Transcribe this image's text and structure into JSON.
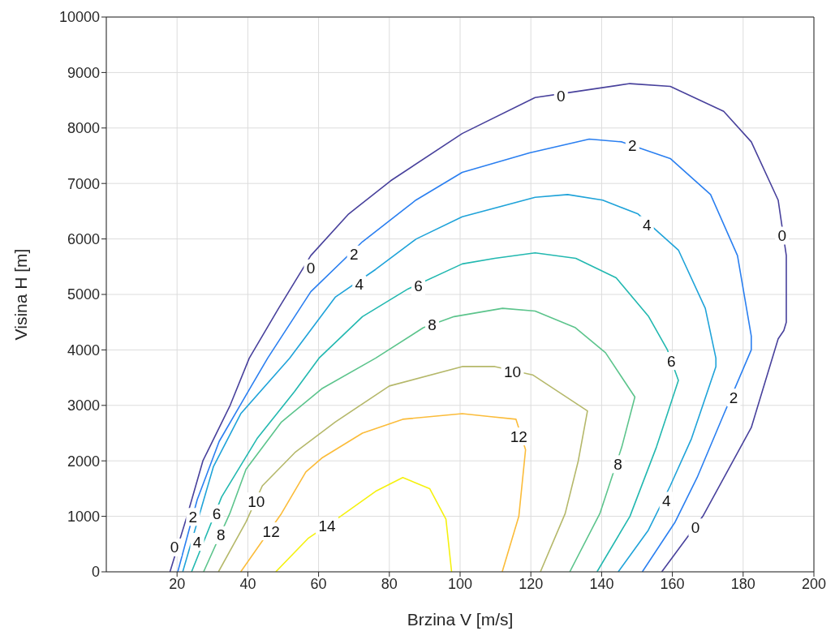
{
  "chart_data": {
    "type": "line",
    "xlabel": "Brzina V [m/s]",
    "ylabel": "Visina H [m]",
    "xlim": [
      0,
      200
    ],
    "xticks": [
      20,
      40,
      60,
      80,
      100,
      120,
      140,
      160,
      180,
      200
    ],
    "ylim": [
      0,
      10000
    ],
    "yticks": [
      0,
      1000,
      2000,
      3000,
      4000,
      5000,
      6000,
      7000,
      8000,
      9000,
      10000
    ],
    "grid": true,
    "marker": "none",
    "line_style": "solid",
    "series": [
      {
        "color": "#48419c",
        "x": [
          18,
          22.8,
          27.3,
          35,
          40.4,
          48.7,
          57.8,
          68.5,
          80.4,
          100.6,
          121.2,
          132,
          148,
          159.4,
          174.5,
          182.3,
          189.9,
          192.2,
          192.2,
          191.5,
          189.9,
          182.3,
          168.6,
          157
        ],
        "values": [
          0,
          1000,
          2000,
          3000,
          3850,
          4750,
          5700,
          6450,
          7050,
          7900,
          8550,
          8650,
          8800,
          8750,
          8300,
          7750,
          6700,
          5700,
          4500,
          4350,
          4200,
          2600,
          1000,
          0
        ]
      },
      {
        "color": "#2a7ff0",
        "x": [
          20.2,
          25.7,
          31.9,
          41,
          45.6,
          57.8,
          72.4,
          87.5,
          100.6,
          119.6,
          136.5,
          145.7,
          159.4,
          170.8,
          178.4,
          182.3,
          182.3,
          174.6,
          167,
          160.8,
          151.5
        ],
        "values": [
          0,
          1300,
          2350,
          3350,
          3850,
          5050,
          5950,
          6700,
          7200,
          7550,
          7800,
          7750,
          7450,
          6800,
          5700,
          4250,
          4000,
          2850,
          1700,
          900,
          0
        ]
      },
      {
        "color": "#1fa3d9",
        "x": [
          21.6,
          30.3,
          38,
          51.8,
          64.7,
          76.1,
          87.6,
          100.6,
          121.2,
          130.4,
          140.3,
          150.3,
          161.7,
          169.3,
          172.3,
          172.3,
          165.4,
          159.4,
          153.2,
          144.7
        ],
        "values": [
          0,
          1900,
          2850,
          3850,
          4950,
          5450,
          6000,
          6400,
          6750,
          6800,
          6700,
          6450,
          5800,
          4750,
          3850,
          3700,
          2400,
          1550,
          750,
          0
        ]
      },
      {
        "color": "#22b8b0",
        "x": [
          24.1,
          32.6,
          42.6,
          53.2,
          60.1,
          72.4,
          85.3,
          100.6,
          109.8,
          121.2,
          132.7,
          144.1,
          153.3,
          158.6,
          161.7,
          155.5,
          148,
          138.7
        ],
        "values": [
          0,
          1350,
          2400,
          3250,
          3850,
          4600,
          5100,
          5550,
          5650,
          5750,
          5650,
          5300,
          4600,
          4000,
          3450,
          2250,
          1000,
          0
        ]
      },
      {
        "color": "#5cc48c",
        "x": [
          27.5,
          34.9,
          39.5,
          49.5,
          60.9,
          76.1,
          89.6,
          98.3,
          112,
          121.2,
          132.6,
          141.1,
          149.4,
          145.7,
          139.5,
          131
        ],
        "values": [
          0,
          1050,
          1850,
          2700,
          3300,
          3850,
          4400,
          4600,
          4750,
          4700,
          4400,
          3950,
          3150,
          2250,
          1050,
          0
        ]
      },
      {
        "color": "#b5b86a",
        "x": [
          31.7,
          39.5,
          44.1,
          53.3,
          64.7,
          80,
          100.6,
          109.8,
          120.5,
          136,
          133.4,
          129.7,
          122.7
        ],
        "values": [
          0,
          900,
          1550,
          2150,
          2700,
          3350,
          3700,
          3700,
          3550,
          2900,
          2000,
          1050,
          0
        ]
      },
      {
        "color": "#fbbc3a",
        "x": [
          38,
          49.5,
          56.4,
          60.9,
          72.4,
          83.8,
          100.6,
          108.2,
          115.8,
          118.5,
          116.6,
          111.9
        ],
        "values": [
          0,
          1050,
          1800,
          2050,
          2500,
          2750,
          2850,
          2800,
          2750,
          2200,
          1000,
          0
        ]
      },
      {
        "color": "#f5f10e",
        "x": [
          47.9,
          57,
          66.2,
          76.1,
          83.8,
          91.4,
          96,
          97.6
        ],
        "values": [
          0,
          600,
          1000,
          1450,
          1700,
          1500,
          950,
          0
        ]
      }
    ],
    "annotations": [
      {
        "text": "0",
        "x": 57.8,
        "y": 5470
      },
      {
        "text": "0",
        "x": 128.5,
        "y": 8580
      },
      {
        "text": "0",
        "x": 191,
        "y": 6060
      },
      {
        "text": "0",
        "x": 166.5,
        "y": 800
      },
      {
        "text": "0",
        "x": 19.3,
        "y": 440
      },
      {
        "text": "2",
        "x": 70,
        "y": 5720
      },
      {
        "text": "2",
        "x": 148.7,
        "y": 7690
      },
      {
        "text": "2",
        "x": 177.3,
        "y": 3140
      },
      {
        "text": "2",
        "x": 24.5,
        "y": 990
      },
      {
        "text": "4",
        "x": 71.5,
        "y": 5180
      },
      {
        "text": "4",
        "x": 152.8,
        "y": 6250
      },
      {
        "text": "4",
        "x": 158.3,
        "y": 1280
      },
      {
        "text": "4",
        "x": 25.7,
        "y": 540
      },
      {
        "text": "6",
        "x": 88.2,
        "y": 5150
      },
      {
        "text": "6",
        "x": 159.7,
        "y": 3800
      },
      {
        "text": "6",
        "x": 31.2,
        "y": 1050
      },
      {
        "text": "8",
        "x": 92.1,
        "y": 4450
      },
      {
        "text": "8",
        "x": 144.6,
        "y": 1940
      },
      {
        "text": "8",
        "x": 32.4,
        "y": 660
      },
      {
        "text": "10",
        "x": 114.8,
        "y": 3610
      },
      {
        "text": "10",
        "x": 42.4,
        "y": 1270
      },
      {
        "text": "12",
        "x": 116.6,
        "y": 2440
      },
      {
        "text": "12",
        "x": 46.6,
        "y": 730
      },
      {
        "text": "14",
        "x": 62.4,
        "y": 830
      }
    ]
  }
}
